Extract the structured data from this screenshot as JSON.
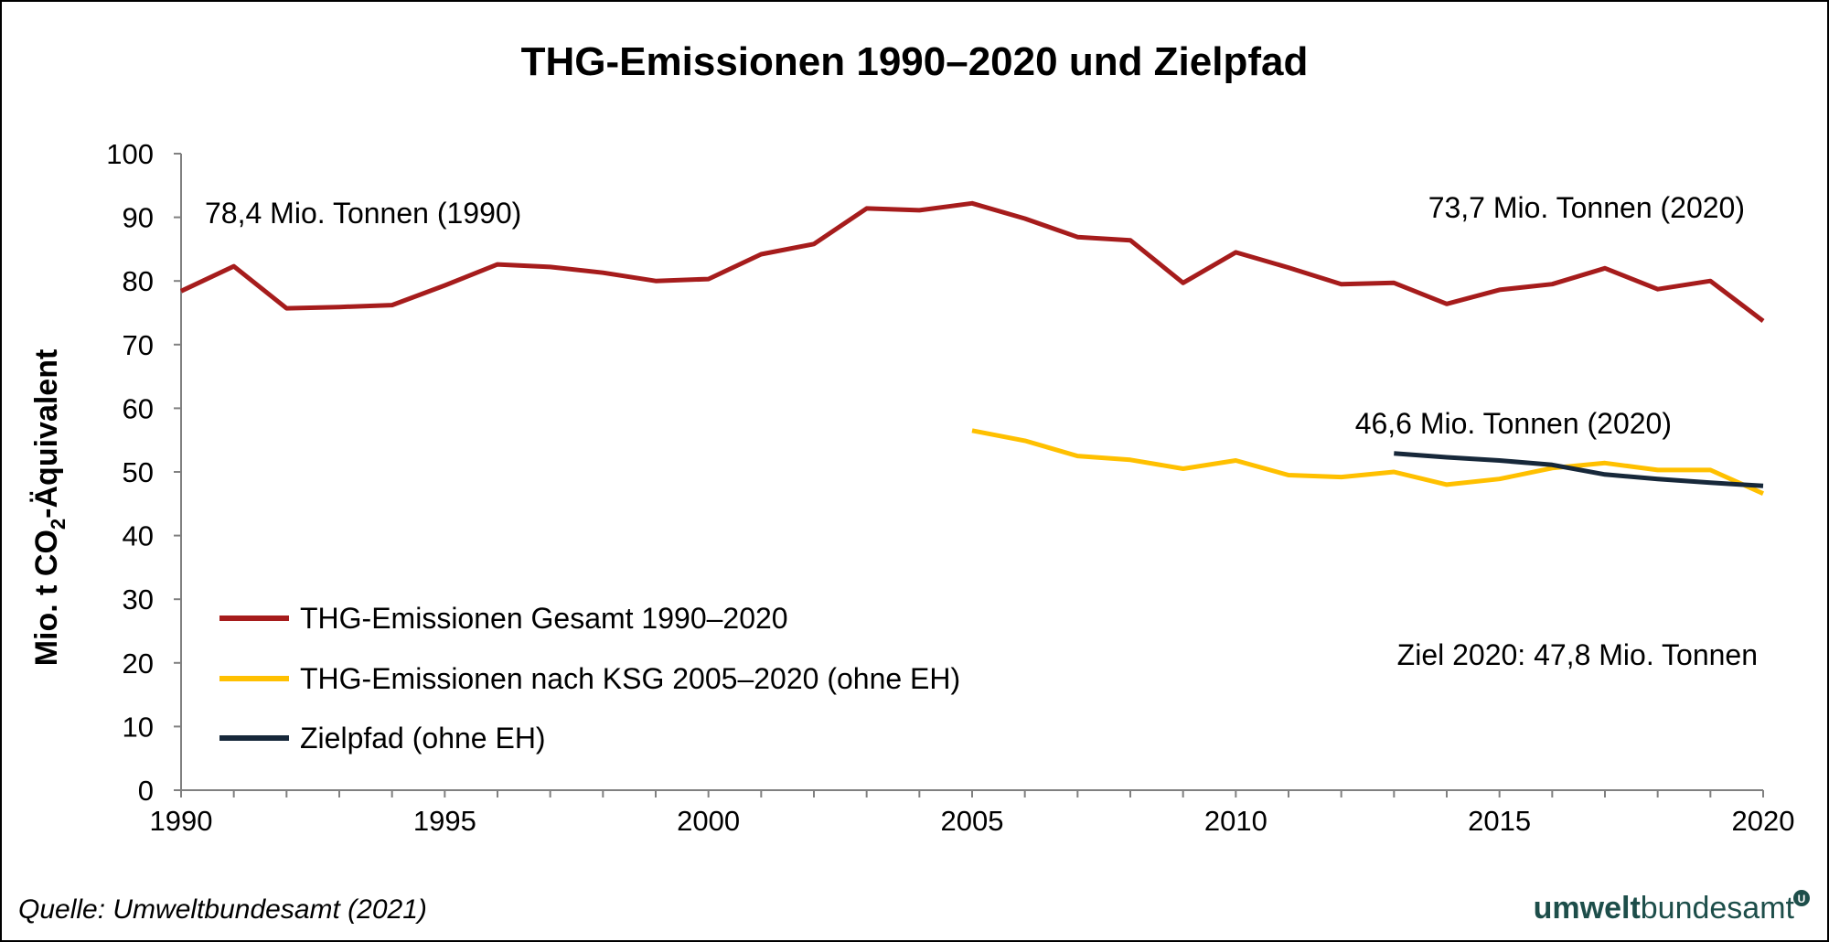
{
  "chart_data": {
    "type": "line",
    "title": "THG-Emissionen 1990–2020 und  Zielpfad",
    "ylabel": "Mio. t CO2-Äquivalent",
    "xlabel": "",
    "xlim": [
      1990,
      2020
    ],
    "ylim": [
      0,
      100
    ],
    "x_ticks": [
      1990,
      1995,
      2000,
      2005,
      2010,
      2015,
      2020
    ],
    "y_ticks": [
      0,
      10,
      20,
      30,
      40,
      50,
      60,
      70,
      80,
      90,
      100
    ],
    "grid": false,
    "legend_position": "bottom-left",
    "series": [
      {
        "name": "THG-Emissionen Gesamt 1990–2020",
        "color": "#a61c1c",
        "x": [
          1990,
          1991,
          1992,
          1993,
          1994,
          1995,
          1996,
          1997,
          1998,
          1999,
          2000,
          2001,
          2002,
          2003,
          2004,
          2005,
          2006,
          2007,
          2008,
          2009,
          2010,
          2011,
          2012,
          2013,
          2014,
          2015,
          2016,
          2017,
          2018,
          2019,
          2020
        ],
        "y": [
          78.4,
          82.3,
          75.7,
          75.9,
          76.2,
          79.3,
          82.6,
          82.2,
          81.3,
          80.0,
          80.3,
          84.2,
          85.8,
          91.4,
          91.1,
          92.2,
          89.8,
          86.9,
          86.4,
          79.7,
          84.5,
          82.1,
          79.5,
          79.7,
          76.4,
          78.6,
          79.5,
          82.0,
          78.7,
          80.0,
          73.7
        ]
      },
      {
        "name": "THG-Emissionen nach KSG 2005–2020 (ohne EH)",
        "color": "#ffc000",
        "x": [
          2005,
          2006,
          2007,
          2008,
          2009,
          2010,
          2011,
          2012,
          2013,
          2014,
          2015,
          2016,
          2017,
          2018,
          2019,
          2020
        ],
        "y": [
          56.5,
          54.9,
          52.5,
          51.9,
          50.5,
          51.8,
          49.5,
          49.2,
          50.0,
          48.0,
          48.9,
          50.6,
          51.4,
          50.3,
          50.3,
          46.6
        ]
      },
      {
        "name": "Zielpfad (ohne EH)",
        "color": "#17283a",
        "x": [
          2013,
          2014,
          2015,
          2016,
          2017,
          2018,
          2019,
          2020
        ],
        "y": [
          52.9,
          52.3,
          51.8,
          51.1,
          49.6,
          48.9,
          48.3,
          47.8
        ]
      }
    ],
    "annotations": [
      "78,4 Mio. Tonnen (1990)",
      "73,7 Mio. Tonnen (2020)",
      "46,6 Mio. Tonnen (2020)",
      "Ziel 2020: 47,8 Mio. Tonnen"
    ]
  },
  "footer": {
    "source": "Quelle: Umweltbundesamt (2021)",
    "logo_bold": "umwelt",
    "logo_regular": "bundesamt"
  },
  "colors": {
    "logo": "#1d4e4a"
  }
}
